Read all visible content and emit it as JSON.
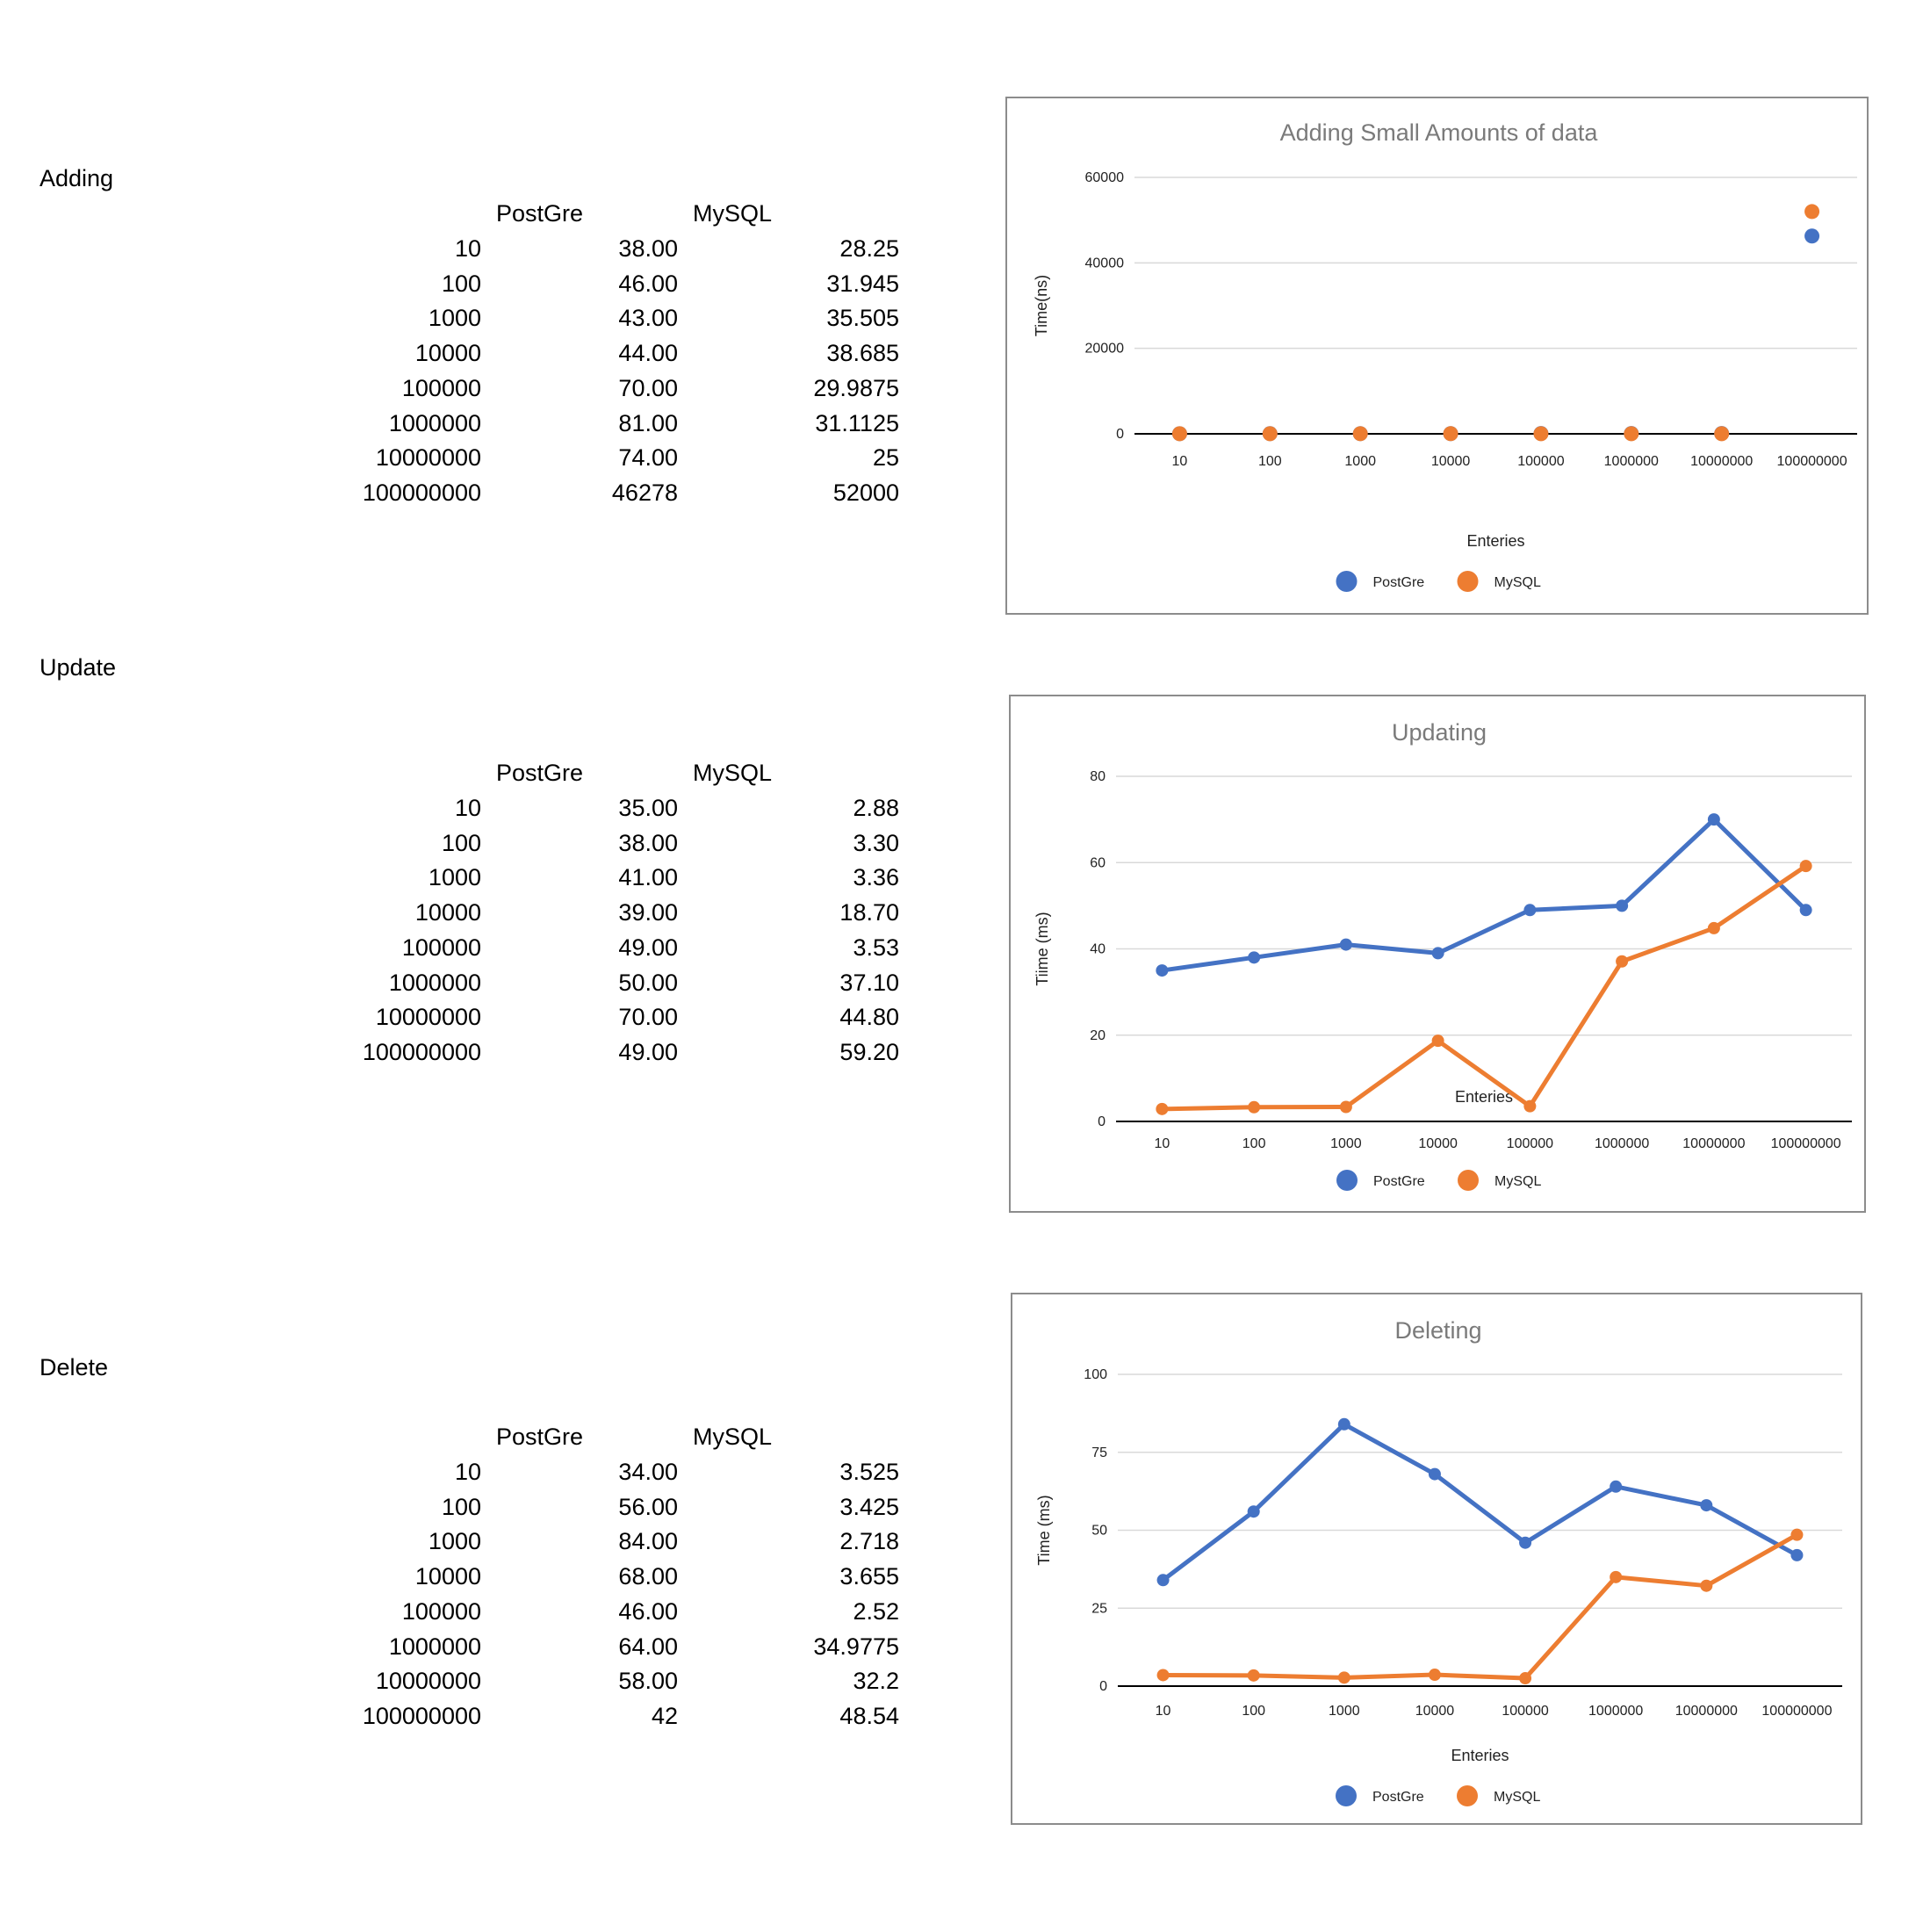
{
  "sections": [
    {
      "title": "Adding",
      "headers": [
        "PostGre",
        "MySQL"
      ],
      "rows": [
        [
          "10",
          "38.00",
          "28.25"
        ],
        [
          "100",
          "46.00",
          "31.945"
        ],
        [
          "1000",
          "43.00",
          "35.505"
        ],
        [
          "10000",
          "44.00",
          "38.685"
        ],
        [
          "100000",
          "70.00",
          "29.9875"
        ],
        [
          "1000000",
          "81.00",
          "31.1125"
        ],
        [
          "10000000",
          "74.00",
          "25"
        ],
        [
          "100000000",
          "46278",
          "52000"
        ]
      ]
    },
    {
      "title": "Update",
      "headers": [
        "PostGre",
        "MySQL"
      ],
      "rows": [
        [
          "10",
          "35.00",
          "2.88"
        ],
        [
          "100",
          "38.00",
          "3.30"
        ],
        [
          "1000",
          "41.00",
          "3.36"
        ],
        [
          "10000",
          "39.00",
          "18.70"
        ],
        [
          "100000",
          "49.00",
          "3.53"
        ],
        [
          "1000000",
          "50.00",
          "37.10"
        ],
        [
          "10000000",
          "70.00",
          "44.80"
        ],
        [
          "100000000",
          "49.00",
          "59.20"
        ]
      ]
    },
    {
      "title": "Delete",
      "headers": [
        "PostGre",
        "MySQL"
      ],
      "rows": [
        [
          "10",
          "34.00",
          "3.525"
        ],
        [
          "100",
          "56.00",
          "3.425"
        ],
        [
          "1000",
          "84.00",
          "2.718"
        ],
        [
          "10000",
          "68.00",
          "3.655"
        ],
        [
          "100000",
          "46.00",
          "2.52"
        ],
        [
          "1000000",
          "64.00",
          "34.9775"
        ],
        [
          "10000000",
          "58.00",
          "32.2"
        ],
        [
          "100000000",
          "42",
          "48.54"
        ]
      ]
    }
  ],
  "colors": {
    "postgre": "#4472C4",
    "mysql": "#ED7D31",
    "grid": "#d9d9d9",
    "axis": "#000000"
  },
  "chart_data": [
    {
      "type": "scatter",
      "title": "Adding Small Amounts of data",
      "xlabel": "Enteries",
      "ylabel": "Time(ns)",
      "categories": [
        "10",
        "100",
        "1000",
        "10000",
        "100000",
        "1000000",
        "10000000",
        "100000000"
      ],
      "ylim": [
        0,
        60000
      ],
      "yticks": [
        0,
        20000,
        40000,
        60000
      ],
      "legend_position": "bottom",
      "grid": true,
      "series": [
        {
          "name": "PostGre",
          "values": [
            38,
            46,
            43,
            44,
            70,
            81,
            74,
            46278
          ]
        },
        {
          "name": "MySQL",
          "values": [
            28.25,
            31.945,
            35.505,
            38.685,
            29.9875,
            31.1125,
            25,
            52000
          ]
        }
      ]
    },
    {
      "type": "line",
      "title": "Updating",
      "xlabel": "Enteries",
      "ylabel": "Tiime (ms)",
      "categories": [
        "10",
        "100",
        "1000",
        "10000",
        "100000",
        "1000000",
        "10000000",
        "100000000"
      ],
      "ylim": [
        0,
        80
      ],
      "yticks": [
        0,
        20,
        40,
        60,
        80
      ],
      "legend_position": "bottom",
      "grid": true,
      "series": [
        {
          "name": "PostGre",
          "values": [
            35,
            38,
            41,
            39,
            49,
            50,
            70,
            49
          ]
        },
        {
          "name": "MySQL",
          "values": [
            2.88,
            3.3,
            3.36,
            18.7,
            3.53,
            37.1,
            44.8,
            59.2
          ]
        }
      ]
    },
    {
      "type": "line",
      "title": "Deleting",
      "xlabel": "Enteries",
      "ylabel": "Time (ms)",
      "categories": [
        "10",
        "100",
        "1000",
        "10000",
        "100000",
        "1000000",
        "10000000",
        "100000000"
      ],
      "ylim": [
        0,
        100
      ],
      "yticks": [
        0,
        25,
        50,
        75,
        100
      ],
      "legend_position": "bottom",
      "grid": true,
      "series": [
        {
          "name": "PostGre",
          "values": [
            34,
            56,
            84,
            68,
            46,
            64,
            58,
            42
          ]
        },
        {
          "name": "MySQL",
          "values": [
            3.525,
            3.425,
            2.718,
            3.655,
            2.52,
            34.9775,
            32.2,
            48.54
          ]
        }
      ]
    }
  ]
}
